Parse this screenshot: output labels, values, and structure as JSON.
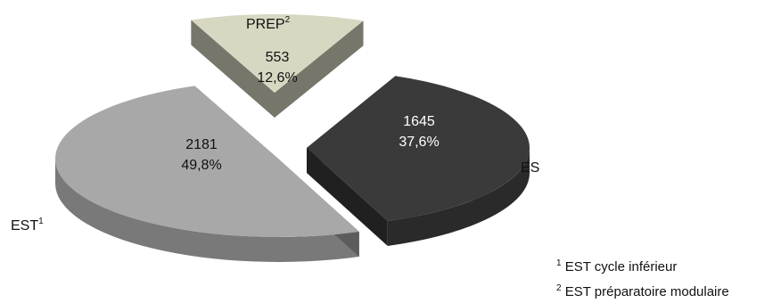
{
  "chart_data": {
    "type": "pie",
    "title": "",
    "series": [
      {
        "name": "",
        "values": [
          553,
          1645,
          2181
        ]
      }
    ],
    "categories": [
      "PREP",
      "ES",
      "EST"
    ],
    "category_marks": [
      "2",
      "",
      "1"
    ],
    "value_labels": [
      "553",
      "1645",
      "2181"
    ],
    "percent_labels": [
      "12,6%",
      "37,6%",
      "49,8%"
    ],
    "colors": [
      "#d8d7c2",
      "#3a3a3a",
      "#a8a8a8"
    ],
    "exploded": true,
    "three_d": true,
    "legend": "none"
  },
  "footnotes": [
    {
      "mark": "1",
      "text": "EST cycle inférieur"
    },
    {
      "mark": "2",
      "text": "EST préparatoire modulaire"
    }
  ]
}
